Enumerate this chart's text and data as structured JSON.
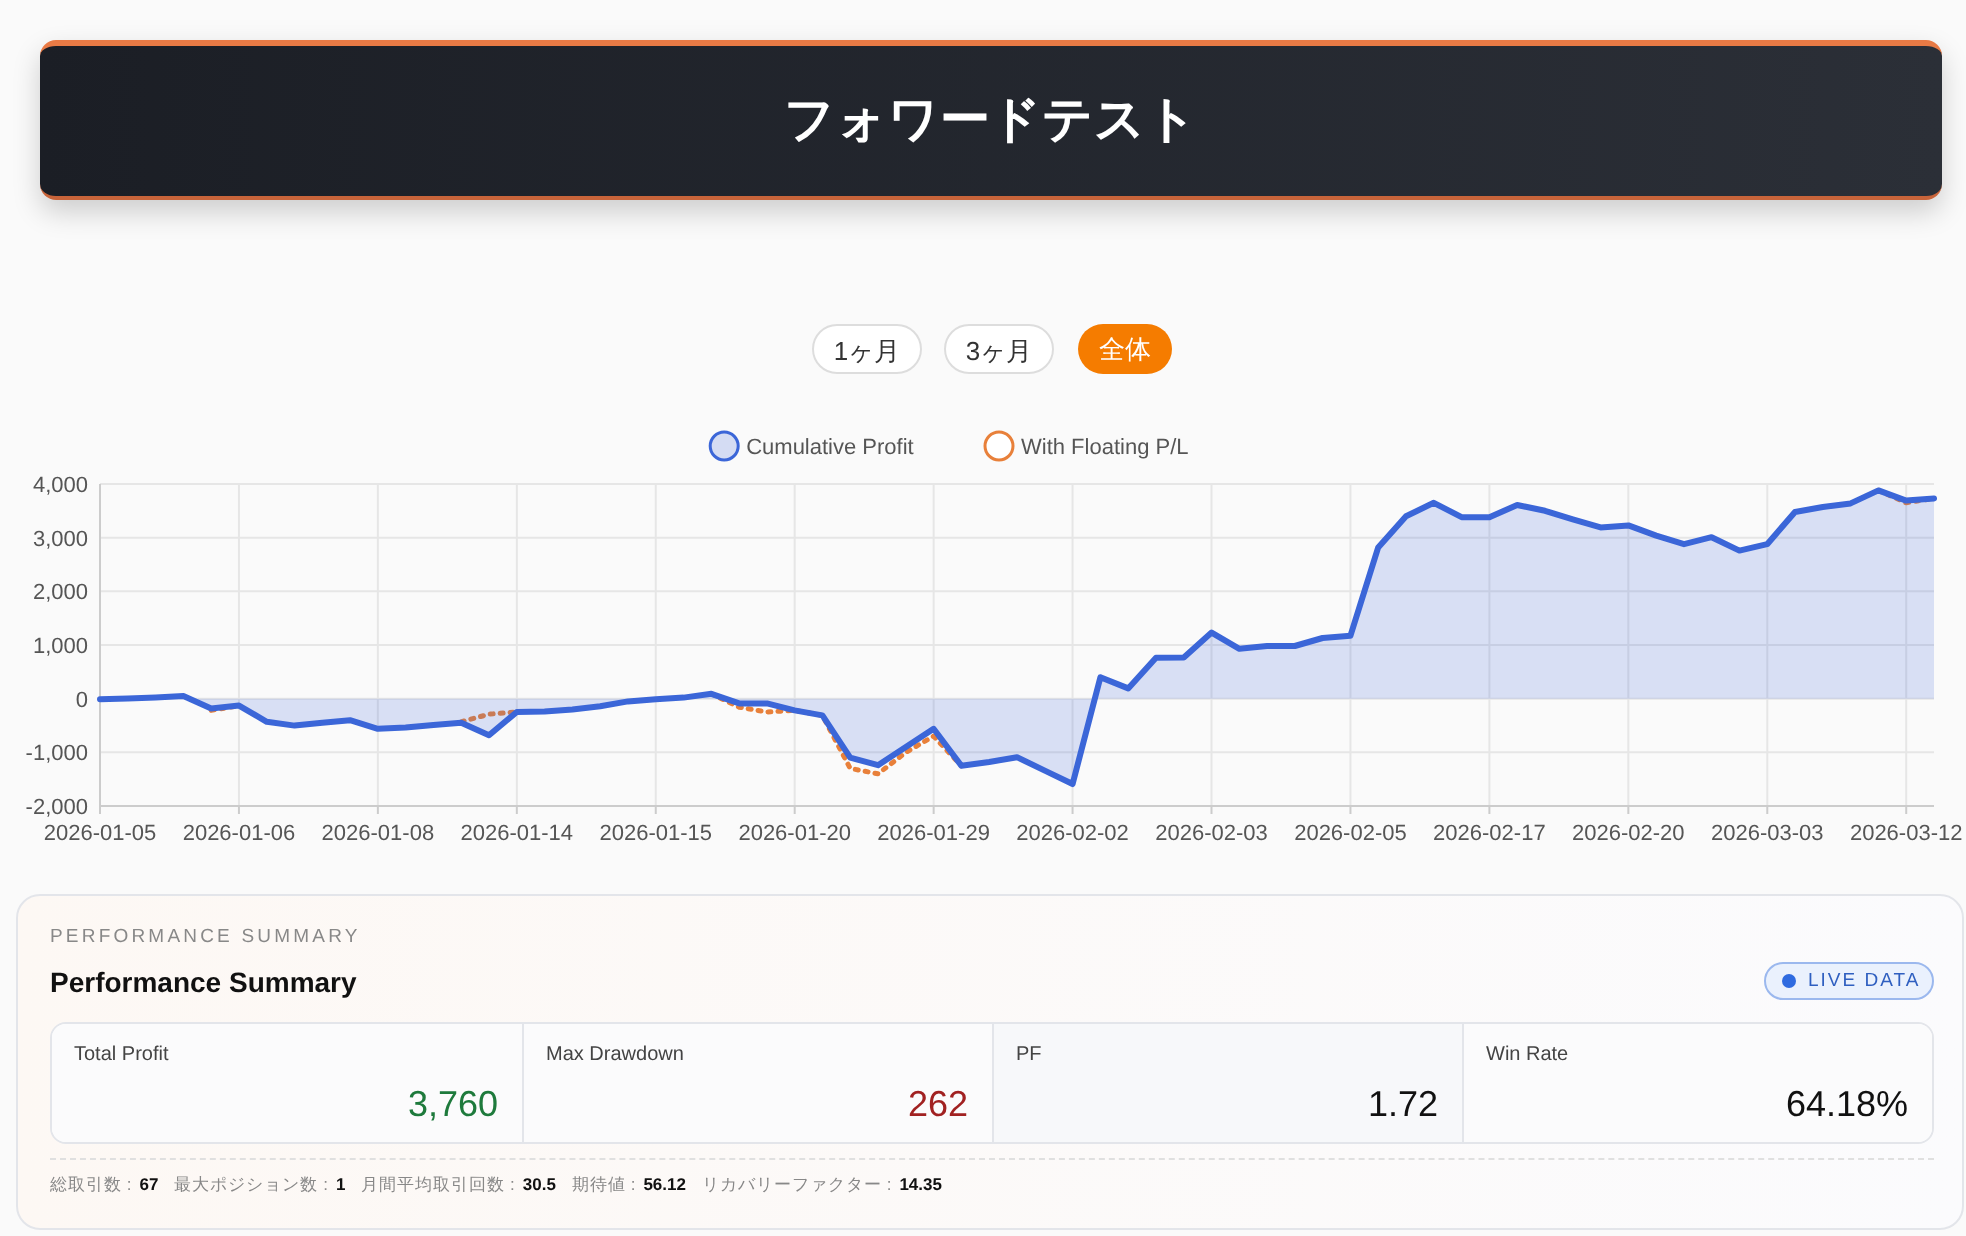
{
  "chart_data": [
    {
      "type": "area",
      "title": "フォワードテスト",
      "annotations": [
        "1ヶ月",
        "3ヶ月",
        "全体"
      ],
      "categories": [
        "2026-01-05",
        null,
        null,
        null,
        null,
        "2026-01-06",
        null,
        null,
        null,
        null,
        "2026-01-08",
        null,
        null,
        null,
        null,
        "2026-01-14",
        null,
        null,
        null,
        null,
        "2026-01-15",
        null,
        null,
        null,
        null,
        "2026-01-20",
        null,
        null,
        null,
        null,
        "2026-01-29",
        null,
        null,
        null,
        null,
        "2026-02-02",
        null,
        null,
        null,
        null,
        "2026-02-03",
        null,
        null,
        null,
        null,
        "2026-02-05",
        null,
        null,
        null,
        null,
        "2026-02-17",
        null,
        null,
        null,
        null,
        "2026-02-20",
        null,
        null,
        null,
        null,
        "2026-03-03",
        null,
        null,
        null,
        null,
        "2026-03-12",
        null
      ],
      "series": [
        {
          "name": "With Floating P/L",
          "type": "line",
          "line_style": "dotted",
          "color": "#e8803a",
          "values": [
            null,
            null,
            null,
            null,
            -220,
            -130,
            null,
            null,
            null,
            null,
            null,
            null,
            null,
            -430,
            -290,
            -250,
            null,
            null,
            null,
            null,
            null,
            null,
            90,
            -160,
            -250,
            -220,
            -310,
            -1300,
            -1400,
            -1000,
            -700,
            -1250,
            null,
            null,
            null,
            null,
            null,
            null,
            null,
            null,
            null,
            null,
            null,
            null,
            null,
            null,
            null,
            null,
            null,
            null,
            null,
            null,
            null,
            null,
            null,
            null,
            null,
            null,
            null,
            null,
            null,
            null,
            null,
            null,
            3880,
            3650,
            3730
          ]
        },
        {
          "name": "Cumulative Profit",
          "type": "area",
          "line_style": "solid",
          "color": "#3b66d8",
          "values": [
            -10,
            0,
            20,
            50,
            -180,
            -130,
            -430,
            -500,
            -450,
            -400,
            -560,
            -540,
            -490,
            -450,
            -680,
            -250,
            -240,
            -200,
            -140,
            -50,
            -10,
            20,
            90,
            -90,
            -90,
            -220,
            -310,
            -1100,
            -1240,
            -900,
            -560,
            -1250,
            -1180,
            -1090,
            -1340,
            -1590,
            400,
            190,
            760,
            770,
            1230,
            930,
            980,
            980,
            1130,
            1170,
            2820,
            3400,
            3650,
            3380,
            3380,
            3610,
            3500,
            3340,
            3190,
            3230,
            3040,
            2880,
            3010,
            2760,
            2880,
            3480,
            3570,
            3640,
            3880,
            3690,
            3730
          ]
        }
      ],
      "ylim": [
        -2000,
        4000
      ],
      "yticks": [
        {
          "value": -2000,
          "label": "-2,000"
        },
        {
          "value": -1000,
          "label": "-1,000"
        },
        0,
        {
          "value": 1000,
          "label": "1,000"
        },
        {
          "value": 2000,
          "label": "2,000"
        },
        {
          "value": 3000,
          "label": "3,000"
        },
        {
          "value": 4000,
          "label": "4,000"
        }
      ],
      "grid": true,
      "legend": "top"
    },
    {
      "type": "other",
      "subtitle": "PERFORMANCE SUMMARY",
      "title": "Performance Summary",
      "annotations": [
        "LIVE DATA",
        "Total Profit",
        "3,760",
        "Max Drawdown",
        "262",
        "PF",
        "1.72",
        "Win Rate",
        "64.18%",
        "総取引数 :",
        "67",
        "最大ポジション数 :",
        "1",
        "月間平均取引回数 :",
        "30.5",
        "期待値 :",
        "56.12",
        "リカバリーファクター :",
        "14.35"
      ]
    }
  ]
}
